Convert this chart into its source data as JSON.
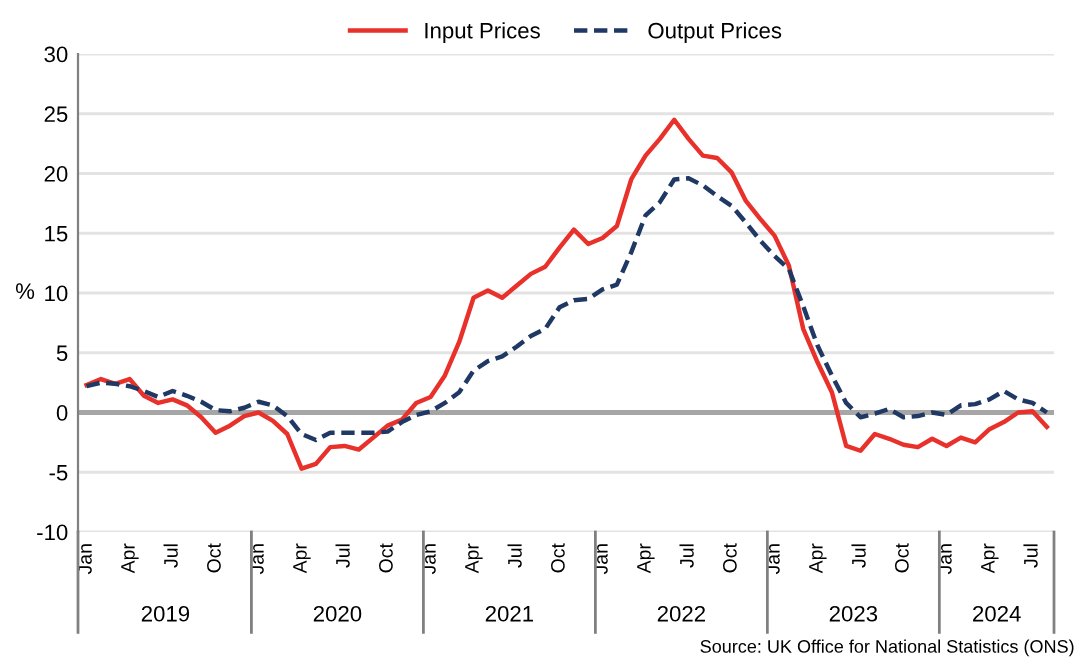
{
  "chart_data": {
    "type": "line",
    "categories": [
      "Jan",
      null,
      null,
      "Apr",
      null,
      null,
      "Jul",
      null,
      null,
      "Oct",
      null,
      null,
      "Jan",
      null,
      null,
      "Apr",
      null,
      null,
      "Jul",
      null,
      null,
      "Oct",
      null,
      null,
      "Jan",
      null,
      null,
      "Apr",
      null,
      null,
      "Jul",
      null,
      null,
      "Oct",
      null,
      null,
      "Jan",
      null,
      null,
      "Apr",
      null,
      null,
      "Jul",
      null,
      null,
      "Oct",
      null,
      null,
      "Jan",
      null,
      null,
      "Apr",
      null,
      null,
      "Jul",
      null,
      null,
      "Oct",
      null,
      null,
      "Jan",
      null,
      null,
      "Apr",
      null,
      null,
      "Jul",
      null
    ],
    "series": [
      {
        "name": "Input Prices",
        "color": "#e8312a",
        "line_style": "solid",
        "values": [
          2.3,
          2.8,
          2.4,
          2.8,
          1.4,
          0.8,
          1.1,
          0.6,
          -0.4,
          -1.7,
          -1.1,
          -0.3,
          0.0,
          -0.7,
          -1.8,
          -4.7,
          -4.3,
          -2.9,
          -2.8,
          -3.1,
          -2.1,
          -1.1,
          -0.6,
          0.8,
          1.3,
          3.1,
          5.9,
          9.6,
          10.2,
          9.6,
          10.6,
          11.6,
          12.2,
          13.8,
          15.3,
          14.1,
          14.6,
          15.6,
          19.5,
          21.5,
          22.9,
          24.5,
          22.9,
          21.5,
          21.3,
          20.1,
          17.7,
          16.2,
          14.8,
          12.3,
          7.0,
          4.2,
          1.7,
          -2.8,
          -3.2,
          -1.8,
          -2.2,
          -2.7,
          -2.9,
          -2.2,
          -2.8,
          -2.1,
          -2.5,
          -1.4,
          -0.8,
          0.0,
          0.1,
          -1.2
        ]
      },
      {
        "name": "Output Prices",
        "color": "#1f3864",
        "line_style": "dashed",
        "values": [
          2.2,
          2.5,
          2.4,
          2.2,
          1.8,
          1.3,
          1.8,
          1.4,
          0.9,
          0.2,
          0.1,
          0.4,
          0.9,
          0.6,
          -0.3,
          -1.8,
          -2.3,
          -1.7,
          -1.7,
          -1.7,
          -1.7,
          -1.6,
          -0.8,
          -0.2,
          0.1,
          0.8,
          1.7,
          3.5,
          4.3,
          4.7,
          5.5,
          6.4,
          7.0,
          8.8,
          9.4,
          9.5,
          10.3,
          10.7,
          13.4,
          16.5,
          17.6,
          19.5,
          19.6,
          19.0,
          18.1,
          17.3,
          15.9,
          14.4,
          13.1,
          12.0,
          8.9,
          5.6,
          3.1,
          0.8,
          -0.4,
          -0.1,
          0.3,
          -0.4,
          -0.3,
          0.0,
          -0.2,
          0.6,
          0.7,
          1.1,
          1.8,
          1.1,
          0.8,
          0.0
        ]
      }
    ],
    "ylabel": "%",
    "ylim": [
      -10,
      30
    ],
    "yticks": [
      -10,
      -5,
      0,
      5,
      10,
      15,
      20,
      25,
      30
    ],
    "grid": "y",
    "legend": "top",
    "marker": "none",
    "ref_lines": [
      {
        "axis": "y",
        "value": 0,
        "color": "#a6a6a6"
      }
    ],
    "annotations": [
      "2019",
      "2020",
      "2021",
      "2022",
      "2023",
      "2024",
      "Source: UK Office for National Statistics (ONS)"
    ]
  }
}
